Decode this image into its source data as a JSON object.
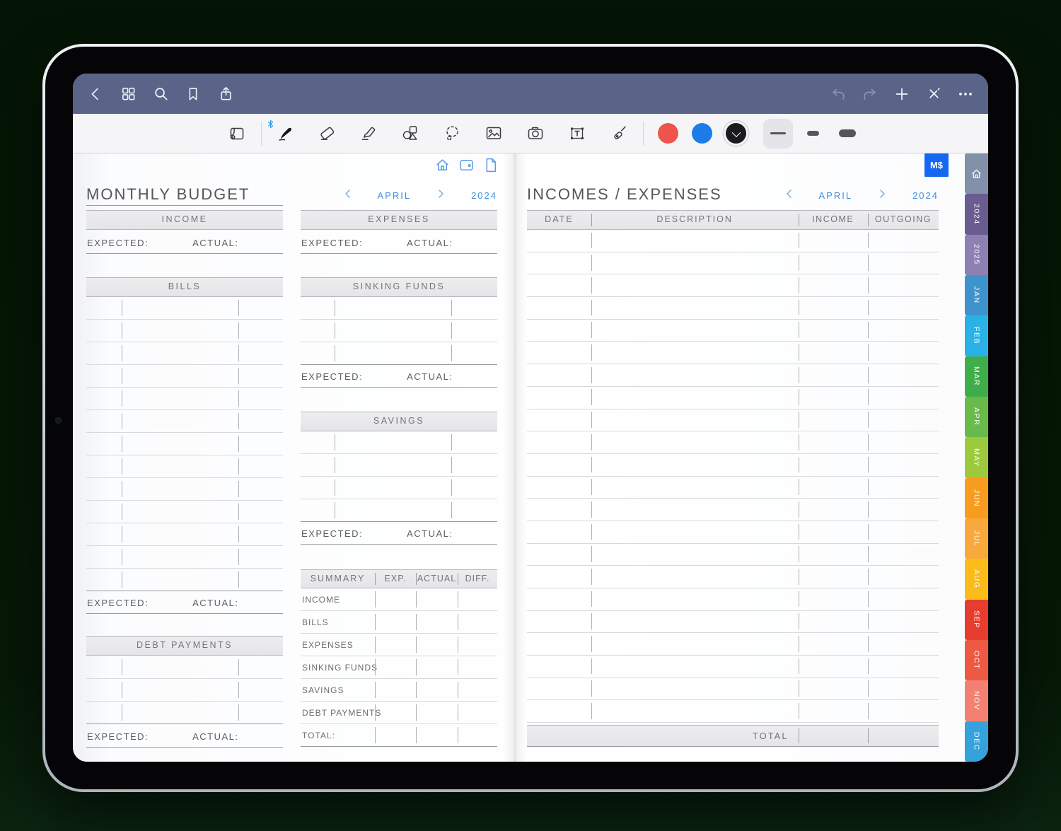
{
  "window": {
    "navbar": {
      "left_icons": [
        "back",
        "pages-overview",
        "search",
        "bookmark",
        "share"
      ],
      "right_icons": [
        "undo",
        "redo",
        "add-page",
        "close-pen",
        "more"
      ],
      "color": "#5a6488"
    },
    "toolbar": {
      "tools": [
        "pan-mode",
        "pen",
        "eraser",
        "highlighter",
        "shapes",
        "lasso",
        "image",
        "camera",
        "text",
        "pointer"
      ],
      "pen_colors": [
        "#ef544c",
        "#1e7ce8",
        "#1b1b1f"
      ],
      "selected_color_index": 2,
      "stroke_sizes": [
        "thin",
        "medium",
        "thick"
      ],
      "selected_stroke_index": 0
    }
  },
  "planner": {
    "quick_links": [
      "home",
      "calendar",
      "page"
    ],
    "badge": {
      "text": "M$",
      "color": "#1568f0"
    },
    "labels": {
      "expected": "EXPECTED:",
      "actual": "ACTUAL:"
    },
    "left_page": {
      "title": "MONTHLY BUDGET",
      "income": {
        "header": "INCOME"
      },
      "bills": {
        "header": "BILLS",
        "rows": 13
      },
      "debt_payments": {
        "header": "DEBT PAYMENTS",
        "rows": 3
      }
    },
    "middle_page": {
      "month_nav": {
        "month": "APRIL",
        "year": "2024"
      },
      "expenses": {
        "header": "EXPENSES"
      },
      "sinking_funds": {
        "header": "SINKING FUNDS",
        "rows": 3
      },
      "savings": {
        "header": "SAVINGS",
        "rows": 4
      },
      "summary": {
        "headers": [
          "SUMMARY",
          "EXP.",
          "ACTUAL",
          "DIFF."
        ],
        "rows": [
          "INCOME",
          "BILLS",
          "EXPENSES",
          "SINKING FUNDS",
          "SAVINGS",
          "DEBT PAYMENTS",
          "TOTAL:"
        ]
      }
    },
    "right_page": {
      "title": "INCOMES / EXPENSES",
      "month_nav": {
        "month": "APRIL",
        "year": "2024"
      },
      "table": {
        "headers": [
          "DATE",
          "DESCRIPTION",
          "INCOME",
          "OUTGOING"
        ],
        "rows": 22,
        "total_label": "TOTAL"
      }
    },
    "tabs": [
      {
        "id": "home",
        "label": "",
        "color": "#8290aa"
      },
      {
        "id": "2024",
        "label": "2024",
        "color": "#6a5b91"
      },
      {
        "id": "2025",
        "label": "2025",
        "color": "#8d80b2"
      },
      {
        "id": "jan",
        "label": "JAN",
        "color": "#3e93cd"
      },
      {
        "id": "feb",
        "label": "FEB",
        "color": "#2ab2e7"
      },
      {
        "id": "mar",
        "label": "MAR",
        "color": "#3fae4a"
      },
      {
        "id": "apr",
        "label": "APR",
        "color": "#68ba4a"
      },
      {
        "id": "may",
        "label": "MAY",
        "color": "#9cca3c"
      },
      {
        "id": "jun",
        "label": "JUN",
        "color": "#f89c20"
      },
      {
        "id": "jul",
        "label": "JUL",
        "color": "#f9a83b"
      },
      {
        "id": "aug",
        "label": "AUG",
        "color": "#fbbb19"
      },
      {
        "id": "sep",
        "label": "SEP",
        "color": "#e63d2e"
      },
      {
        "id": "oct",
        "label": "OCT",
        "color": "#ee5944"
      },
      {
        "id": "nov",
        "label": "NOV",
        "color": "#f48071"
      },
      {
        "id": "dec",
        "label": "DEC",
        "color": "#35a2db"
      }
    ]
  }
}
